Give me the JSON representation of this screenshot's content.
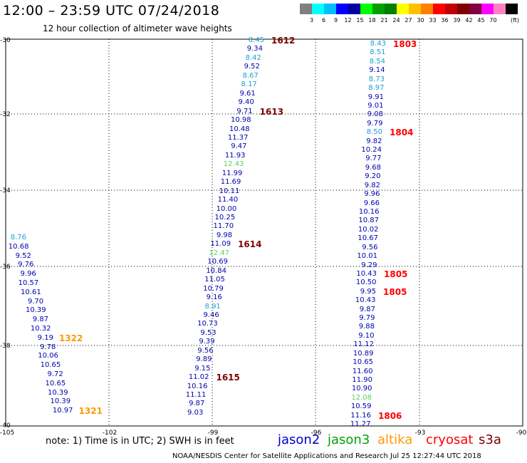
{
  "header": {
    "title": "12:00 – 23:59 UTC 07/24/2018",
    "subtitle": "12 hour collection of altimeter wave heights"
  },
  "legend": {
    "colors": [
      "#808080",
      "#00ffff",
      "#00bfff",
      "#0000ff",
      "#0000a0",
      "#00ff00",
      "#00a000",
      "#008000",
      "#ffff00",
      "#ffc000",
      "#ff8000",
      "#ff0000",
      "#c00000",
      "#800000",
      "#800040",
      "#ff00ff",
      "#ff80c0",
      "#000000"
    ],
    "labels": [
      "3",
      "6",
      "9",
      "12",
      "15",
      "18",
      "21",
      "24",
      "27",
      "30",
      "33",
      "36",
      "39",
      "42",
      "45",
      "70"
    ],
    "unit": "(ft)"
  },
  "axes": {
    "lat_labels": [
      "-30",
      "-32",
      "-34",
      "-36",
      "-38",
      "-40"
    ],
    "lon_labels": [
      "-105",
      "-102",
      "-99",
      "-96",
      "-93",
      "-90"
    ]
  },
  "tracks": [
    {
      "name": "track-1612",
      "time": "1612",
      "time_color": "#800000",
      "points": [
        {
          "v": "8.45",
          "c": "#1fa0d0"
        },
        {
          "v": "9.34",
          "c": "#0000b0"
        },
        {
          "v": "8.42",
          "c": "#1fa0d0"
        },
        {
          "v": "9.52",
          "c": "#0000b0"
        },
        {
          "v": "8.67",
          "c": "#1fa0d0"
        },
        {
          "v": "8.17",
          "c": "#1fa0d0"
        },
        {
          "v": "9.61",
          "c": "#0000b0"
        },
        {
          "v": "9.40",
          "c": "#0000b0"
        },
        {
          "v": "9.71",
          "c": "#0000b0"
        },
        {
          "v": "10.98",
          "c": "#0000b0"
        },
        {
          "v": "10.48",
          "c": "#0000b0"
        },
        {
          "v": "11.37",
          "c": "#0000b0"
        },
        {
          "v": "9.47",
          "c": "#0000b0"
        },
        {
          "v": "11.93",
          "c": "#0000b0"
        },
        {
          "v": "12.43",
          "c": "#60d060"
        },
        {
          "v": "11.99",
          "c": "#0000b0"
        },
        {
          "v": "11.69",
          "c": "#0000b0"
        },
        {
          "v": "10.11",
          "c": "#0000b0"
        },
        {
          "v": "11.40",
          "c": "#0000b0"
        },
        {
          "v": "10.00",
          "c": "#0000b0"
        },
        {
          "v": "10.25",
          "c": "#0000b0"
        },
        {
          "v": "11.70",
          "c": "#0000b0"
        },
        {
          "v": "9.98",
          "c": "#0000b0"
        },
        {
          "v": "11.09",
          "c": "#0000b0"
        },
        {
          "v": "12.47",
          "c": "#60d060"
        },
        {
          "v": "10.69",
          "c": "#0000b0"
        },
        {
          "v": "10.84",
          "c": "#0000b0"
        },
        {
          "v": "11.05",
          "c": "#0000b0"
        },
        {
          "v": "10.79",
          "c": "#0000b0"
        },
        {
          "v": "9.16",
          "c": "#0000b0"
        },
        {
          "v": "8.91",
          "c": "#1fa0d0"
        },
        {
          "v": "9.46",
          "c": "#0000b0"
        },
        {
          "v": "10.73",
          "c": "#0000b0"
        },
        {
          "v": "9.53",
          "c": "#0000b0"
        },
        {
          "v": "9.39",
          "c": "#0000b0"
        },
        {
          "v": "9.56",
          "c": "#0000b0"
        },
        {
          "v": "9.89",
          "c": "#0000b0"
        },
        {
          "v": "9.15",
          "c": "#0000b0"
        },
        {
          "v": "11.02",
          "c": "#0000b0"
        },
        {
          "v": "10.16",
          "c": "#0000b0"
        },
        {
          "v": "11.11",
          "c": "#0000b0"
        },
        {
          "v": "9.87",
          "c": "#0000b0"
        },
        {
          "v": "9.03",
          "c": "#0000b0"
        }
      ],
      "time_labels": [
        {
          "t": "1612",
          "i": 0
        },
        {
          "t": "1613",
          "i": 8
        },
        {
          "t": "1614",
          "i": 23
        },
        {
          "t": "1615",
          "i": 38
        }
      ]
    },
    {
      "name": "track-1803",
      "points": [
        {
          "v": "8.43",
          "c": "#1fa0d0"
        },
        {
          "v": "8.51",
          "c": "#1fa0d0"
        },
        {
          "v": "8.54",
          "c": "#1fa0d0"
        },
        {
          "v": "9.14",
          "c": "#0000b0"
        },
        {
          "v": "8.73",
          "c": "#1fa0d0"
        },
        {
          "v": "8.97",
          "c": "#1fa0d0"
        },
        {
          "v": "9.91",
          "c": "#0000b0"
        },
        {
          "v": "9.01",
          "c": "#0000b0"
        },
        {
          "v": "9.08",
          "c": "#0000b0"
        },
        {
          "v": "9.79",
          "c": "#0000b0"
        },
        {
          "v": "8.50",
          "c": "#1fa0d0"
        },
        {
          "v": "9.82",
          "c": "#0000b0"
        },
        {
          "v": "10.24",
          "c": "#0000b0"
        },
        {
          "v": "9.77",
          "c": "#0000b0"
        },
        {
          "v": "9.68",
          "c": "#0000b0"
        },
        {
          "v": "9.20",
          "c": "#0000b0"
        },
        {
          "v": "9.82",
          "c": "#0000b0"
        },
        {
          "v": "9.96",
          "c": "#0000b0"
        },
        {
          "v": "9.66",
          "c": "#0000b0"
        },
        {
          "v": "10.16",
          "c": "#0000b0"
        },
        {
          "v": "10.87",
          "c": "#0000b0"
        },
        {
          "v": "10.02",
          "c": "#0000b0"
        },
        {
          "v": "10.67",
          "c": "#0000b0"
        },
        {
          "v": "9.56",
          "c": "#0000b0"
        },
        {
          "v": "10.01",
          "c": "#0000b0"
        },
        {
          "v": "9.29",
          "c": "#0000b0"
        },
        {
          "v": "10.43",
          "c": "#0000b0"
        },
        {
          "v": "10.50",
          "c": "#0000b0"
        },
        {
          "v": "9.95",
          "c": "#0000b0"
        },
        {
          "v": "10.43",
          "c": "#0000b0"
        },
        {
          "v": "9.87",
          "c": "#0000b0"
        },
        {
          "v": "9.79",
          "c": "#0000b0"
        },
        {
          "v": "9.88",
          "c": "#0000b0"
        },
        {
          "v": "9.10",
          "c": "#0000b0"
        },
        {
          "v": "11.12",
          "c": "#0000b0"
        },
        {
          "v": "10.89",
          "c": "#0000b0"
        },
        {
          "v": "10.65",
          "c": "#0000b0"
        },
        {
          "v": "11.60",
          "c": "#0000b0"
        },
        {
          "v": "11.90",
          "c": "#0000b0"
        },
        {
          "v": "10.90",
          "c": "#0000b0"
        },
        {
          "v": "12.08",
          "c": "#60d060"
        },
        {
          "v": "10.59",
          "c": "#0000b0"
        },
        {
          "v": "11.16",
          "c": "#0000b0"
        },
        {
          "v": "11.27",
          "c": "#0000b0"
        }
      ],
      "time_labels": [
        {
          "t": "1803",
          "i": 0
        },
        {
          "t": "1804",
          "i": 10
        },
        {
          "t": "1805",
          "i": 26
        },
        {
          "t": "1805",
          "i": 28
        },
        {
          "t": "1806",
          "i": 42
        }
      ]
    },
    {
      "name": "track-1322",
      "points": [
        {
          "v": "8.76",
          "c": "#1fa0d0"
        },
        {
          "v": "10.68",
          "c": "#0000b0"
        },
        {
          "v": "9.52",
          "c": "#0000b0"
        },
        {
          "v": "9.76",
          "c": "#0000b0"
        },
        {
          "v": "9.96",
          "c": "#0000b0"
        },
        {
          "v": "10.57",
          "c": "#0000b0"
        },
        {
          "v": "10.61",
          "c": "#0000b0"
        },
        {
          "v": "9.70",
          "c": "#0000b0"
        },
        {
          "v": "10.39",
          "c": "#0000b0"
        },
        {
          "v": "9.87",
          "c": "#0000b0"
        },
        {
          "v": "10.32",
          "c": "#0000b0"
        },
        {
          "v": "9.19",
          "c": "#0000b0"
        },
        {
          "v": "9.78",
          "c": "#0000b0"
        },
        {
          "v": "10.06",
          "c": "#0000b0"
        },
        {
          "v": "10.65",
          "c": "#0000b0"
        },
        {
          "v": "9.72",
          "c": "#0000b0"
        },
        {
          "v": "10.65",
          "c": "#0000b0"
        },
        {
          "v": "10.39",
          "c": "#0000b0"
        },
        {
          "v": "10.39",
          "c": "#0000b0"
        },
        {
          "v": "10.97",
          "c": "#0000b0"
        }
      ],
      "time_labels": [
        {
          "t": "1322",
          "i": 11
        },
        {
          "t": "1321",
          "i": 19
        }
      ]
    }
  ],
  "note": "note:  1) Time is in UTC; 2) SWH is in feet",
  "satellites": [
    {
      "name": "jason2",
      "color": "#0000cc"
    },
    {
      "name": "jason3",
      "color": "#00a000"
    },
    {
      "name": "altika",
      "color": "#ff9900"
    },
    {
      "name": "cryosat",
      "color": "#ff0000"
    },
    {
      "name": "s3a",
      "color": "#800000"
    }
  ],
  "footer": "NOAA/NESDIS Center for Satellite Applications and Research    Jul 25 12:27:44 UTC 2018"
}
